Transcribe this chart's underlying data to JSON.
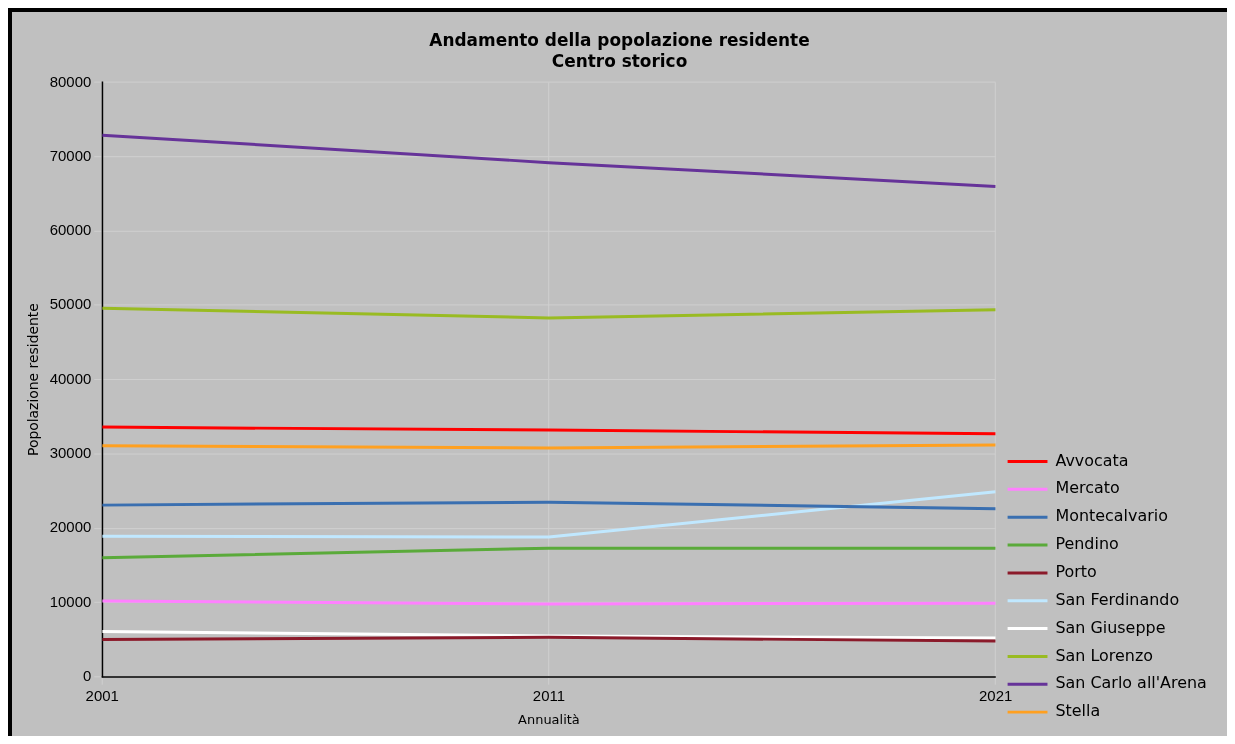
{
  "chart_data": {
    "type": "line",
    "title": "Andamento della popolazione residente\nCentro storico",
    "xlabel": "Annualità",
    "ylabel": "Popolazione residente",
    "x": [
      2001,
      2011,
      2021
    ],
    "xlim": [
      2001,
      2021
    ],
    "xticks": [
      2001,
      2011,
      2021
    ],
    "ylim": [
      0,
      80000
    ],
    "yticks": [
      0,
      10000,
      20000,
      30000,
      40000,
      50000,
      60000,
      70000,
      80000
    ],
    "grid": true,
    "legend": "right",
    "marker": "none",
    "line_style": "solid",
    "series": [
      {
        "name": "Avvocata",
        "color": "#ff0000",
        "values": [
          33600,
          33200,
          32700
        ]
      },
      {
        "name": "Mercato",
        "color": "#ff80ff",
        "values": [
          10200,
          9800,
          9900
        ]
      },
      {
        "name": "Montecalvario",
        "color": "#3a6fb0",
        "values": [
          23100,
          23500,
          22600
        ]
      },
      {
        "name": "Pendino",
        "color": "#5aaa3a",
        "values": [
          16000,
          17300,
          17300
        ]
      },
      {
        "name": "Porto",
        "color": "#8b1a2a",
        "values": [
          5000,
          5300,
          4800
        ]
      },
      {
        "name": "San Ferdinando",
        "color": "#c0e8ff",
        "values": [
          18900,
          18800,
          24900
        ]
      },
      {
        "name": "San Giuseppe",
        "color": "#ffffff",
        "values": [
          6100,
          5500,
          5200
        ]
      },
      {
        "name": "San Lorenzo",
        "color": "#99bb22",
        "values": [
          49600,
          48300,
          49400
        ]
      },
      {
        "name": "San Carlo all'Arena",
        "color": "#663399",
        "values": [
          72900,
          69200,
          66000
        ]
      },
      {
        "name": "Stella",
        "color": "#ffa020",
        "values": [
          31100,
          30800,
          31200
        ]
      }
    ]
  }
}
